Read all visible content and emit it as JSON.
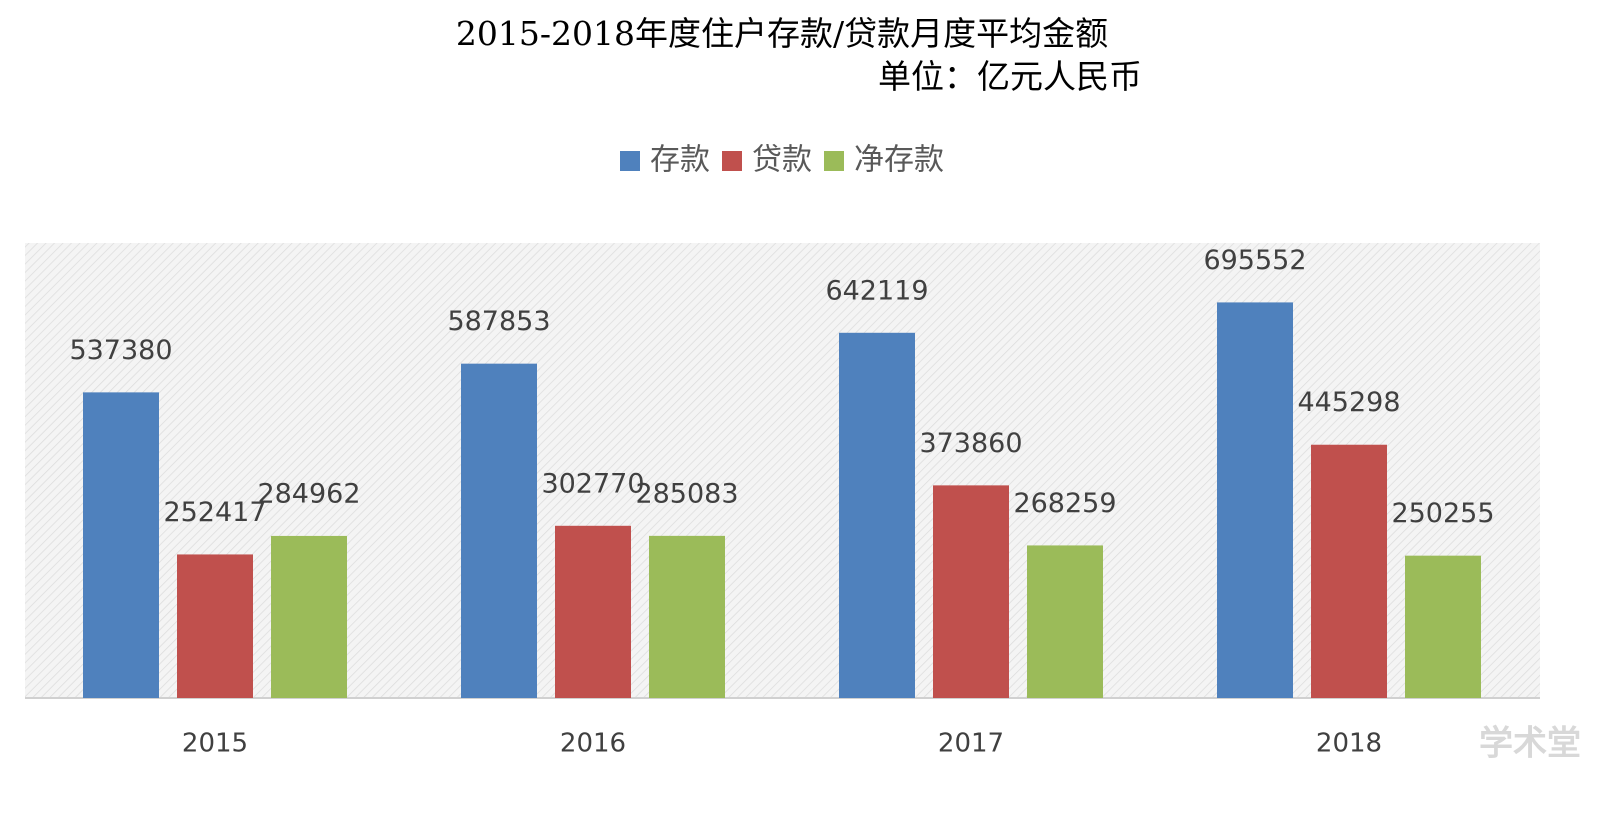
{
  "chart_data": {
    "type": "bar",
    "title": "2015-2018年度住户存款/贷款月度平均金额",
    "subtitle": "单位：亿元人民币",
    "categories": [
      "2015",
      "2016",
      "2017",
      "2018"
    ],
    "series": [
      {
        "name": "存款",
        "color": "#4f81bd",
        "values": [
          537380,
          587853,
          642119,
          695552
        ]
      },
      {
        "name": "贷款",
        "color": "#c0504d",
        "values": [
          252417,
          302770,
          373860,
          445298
        ]
      },
      {
        "name": "净存款",
        "color": "#9bbb59",
        "values": [
          284962,
          285083,
          268259,
          250255
        ]
      }
    ],
    "ylim": [
      0,
      800000
    ],
    "legend": "top",
    "watermark": "学术堂"
  }
}
